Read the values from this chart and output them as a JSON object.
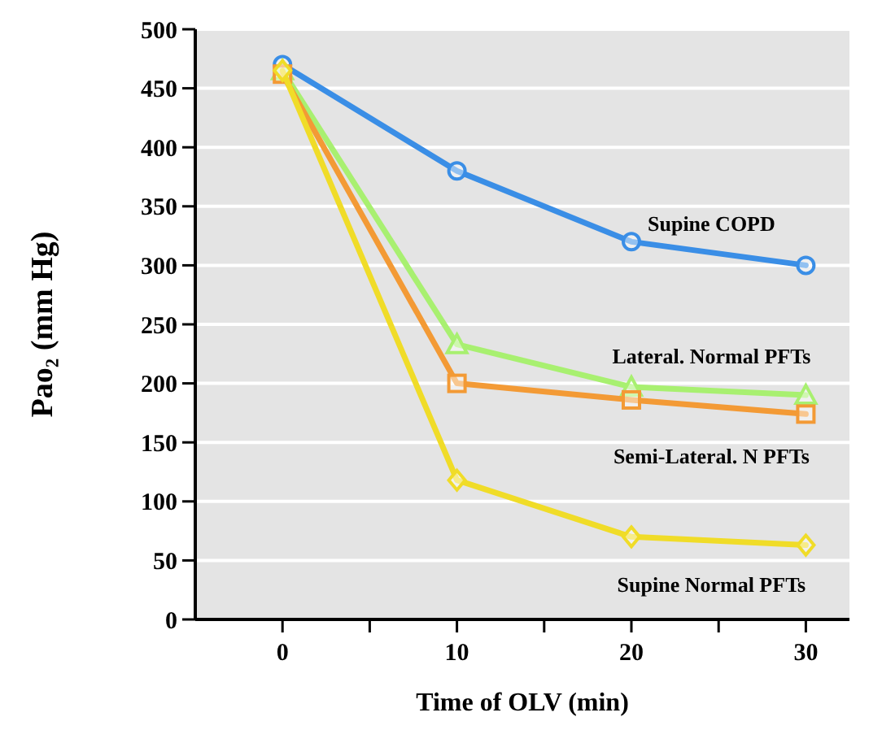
{
  "chart_data": {
    "type": "line",
    "xlabel": "Time of OLV (min)",
    "ylabel": "Pao₂ (mm Hg)",
    "x": [
      0,
      10,
      20,
      30
    ],
    "xlim": [
      -5,
      32.5
    ],
    "xticks": [
      0,
      {
        "value": 5,
        "label": null
      },
      10,
      {
        "value": 15,
        "label": null
      },
      20,
      {
        "value": 25,
        "label": null
      },
      30
    ],
    "ylim": [
      0,
      500
    ],
    "yticks": [
      0,
      50,
      100,
      150,
      200,
      250,
      300,
      350,
      400,
      450,
      500
    ],
    "grid": "y",
    "line_style": "solid",
    "series": [
      {
        "name": "Supine COPD",
        "color": "#3a8ee6",
        "marker": "circle",
        "values": [
          470,
          380,
          320,
          300
        ]
      },
      {
        "name": "Lateral. Normal PFTs",
        "color": "#a8f070",
        "marker": "triangle",
        "values": [
          465,
          233,
          197,
          190
        ]
      },
      {
        "name": "Semi-Lateral. N PFTs",
        "color": "#f39a35",
        "marker": "square",
        "values": [
          462,
          200,
          186,
          174
        ]
      },
      {
        "name": "Supine Normal PFTs",
        "color": "#f0dc28",
        "marker": "diamond",
        "values": [
          465,
          118,
          70,
          63
        ]
      }
    ]
  }
}
